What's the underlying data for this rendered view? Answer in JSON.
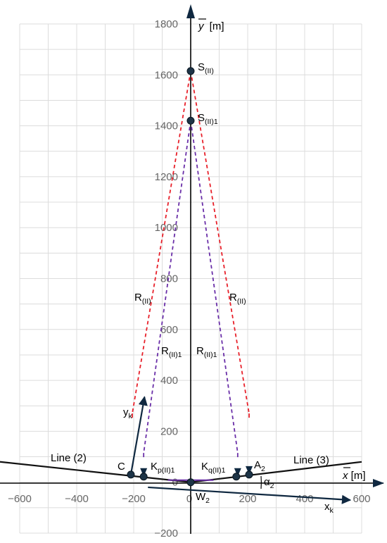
{
  "chart_data": {
    "type": "scatter",
    "xlim": [
      -600,
      600
    ],
    "ylim": [
      -200,
      1800
    ],
    "grid": true,
    "x_ticks": [
      -600,
      -400,
      -200,
      0,
      200,
      400,
      600
    ],
    "y_ticks": [
      -200,
      0,
      200,
      400,
      600,
      800,
      1000,
      1200,
      1400,
      1600,
      1800
    ],
    "x_tick_labels": [
      "−600",
      "−400",
      "−200",
      "0",
      "200",
      "400",
      "600"
    ],
    "y_tick_labels": [
      "−200",
      "0",
      "200",
      "400",
      "600",
      "800",
      "1000",
      "1200",
      "1400",
      "1600",
      "1800"
    ],
    "axis_labels": {
      "x": {
        "symbol": "x",
        "unit": "[m]"
      },
      "y": {
        "symbol": "y",
        "unit": "[m]"
      }
    },
    "points": [
      {
        "id": "S2",
        "name": "S",
        "sub": "(II)",
        "x": 0,
        "y": 1615
      },
      {
        "id": "S21",
        "name": "S",
        "sub": "(II)1",
        "x": 0,
        "y": 1420
      },
      {
        "id": "W2",
        "name": "W",
        "sub": "2",
        "x": 0,
        "y": 0
      },
      {
        "id": "C",
        "name": "C",
        "sub": "",
        "x": -210,
        "y": 30
      },
      {
        "id": "Kp",
        "name": "K",
        "sub": "p(II)1",
        "x": -165,
        "y": 22
      },
      {
        "id": "Kq",
        "name": "K",
        "sub": "q(II)1",
        "x": 160,
        "y": 22
      },
      {
        "id": "A2",
        "name": "A",
        "sub": "2",
        "x": 205,
        "y": 30
      }
    ],
    "lines": [
      {
        "id": "line2",
        "label": "Line (2)",
        "from": [
          -600,
          80
        ],
        "to": [
          0,
          0
        ]
      },
      {
        "id": "line3",
        "label": "Line (3)",
        "from": [
          0,
          0
        ],
        "to": [
          600,
          80
        ]
      },
      {
        "id": "xk_axis",
        "label": "x",
        "label_sub": "k",
        "from": [
          -150,
          -20
        ],
        "to": [
          560,
          -70
        ]
      },
      {
        "id": "yk_axis",
        "label": "y",
        "label_sub": "k",
        "from": [
          -210,
          30
        ],
        "to": [
          -162,
          335
        ]
      }
    ],
    "radius_lines": [
      {
        "id": "R2_left",
        "color": "#e8202a",
        "from": [
          0,
          1615
        ],
        "to": [
          -205,
          270
        ],
        "label": "R",
        "label_sub": "(II)"
      },
      {
        "id": "R2_right",
        "color": "#e8202a",
        "from": [
          0,
          1615
        ],
        "to": [
          205,
          270
        ],
        "label": "R",
        "label_sub": "(II)"
      },
      {
        "id": "R21_left",
        "color": "#6a2fa8",
        "from": [
          0,
          1420
        ],
        "to": [
          -165,
          115
        ],
        "label": "R",
        "label_sub": "(II)1"
      },
      {
        "id": "R21_right",
        "color": "#6a2fa8",
        "from": [
          0,
          1420
        ],
        "to": [
          165,
          115
        ],
        "label": "R",
        "label_sub": "(II)1"
      }
    ],
    "angle": {
      "label": "α",
      "sub": "2"
    }
  }
}
